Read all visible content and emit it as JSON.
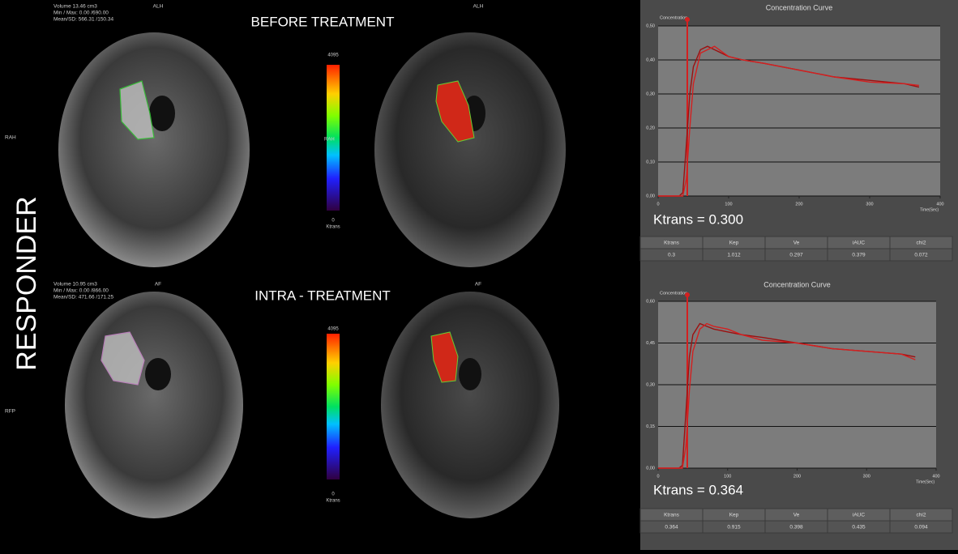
{
  "side_label": "RESPONDER",
  "panels": [
    {
      "heading": "BEFORE TREATMENT",
      "overlay": [
        "Volume 13.46 cm3",
        "Min / Max: 0.00 /690.00",
        "Mean/SD: 566.31 /150.34"
      ],
      "orientation_top": "ALH",
      "orientation_top_right": "ALH",
      "orientation_side": "RAH",
      "colorbar": {
        "max": "4095",
        "mid": "RAH",
        "min": "0",
        "unit": "Ktrans"
      }
    },
    {
      "heading": "INTRA - TREATMENT",
      "overlay": [
        "Volume 10.95 cm3",
        "Min / Max: 0.00 /866.00",
        "Mean/SD: 471.66 /171.25"
      ],
      "orientation_top": "AF",
      "orientation_top_right": "AF",
      "orientation_side": "RFP",
      "colorbar": {
        "max": "4095",
        "mid": "",
        "min": "0",
        "unit": "Ktrans"
      }
    }
  ],
  "chart_data": [
    {
      "type": "line",
      "title": "Concentration Curve",
      "y_label": "Concentration",
      "x_label": "Time(Sec)",
      "x": [
        0,
        30,
        35,
        40,
        45,
        50,
        60,
        70,
        80,
        100,
        120,
        150,
        200,
        250,
        300,
        350,
        370
      ],
      "series": [
        {
          "color": "#9c1010",
          "values": [
            0,
            0,
            0.01,
            0.15,
            0.3,
            0.38,
            0.43,
            0.44,
            0.43,
            0.41,
            0.4,
            0.39,
            0.37,
            0.35,
            0.34,
            0.33,
            0.32
          ]
        },
        {
          "color": "#d42020",
          "values": [
            0,
            0,
            0,
            0.05,
            0.2,
            0.33,
            0.42,
            0.43,
            0.44,
            0.41,
            0.4,
            0.39,
            0.37,
            0.35,
            0.335,
            0.33,
            0.325
          ]
        }
      ],
      "xlim": [
        0,
        400
      ],
      "xticks": [
        0,
        100,
        200,
        300,
        400
      ],
      "ylim": [
        0,
        0.5
      ],
      "yticks": [
        {
          "value": 0,
          "label": "0,00"
        },
        {
          "value": 0.1,
          "label": "0,10"
        },
        {
          "value": 0.2,
          "label": "0,20"
        },
        {
          "value": 0.3,
          "label": "0,30"
        },
        {
          "value": 0.4,
          "label": "0,40"
        },
        {
          "value": 0.5,
          "label": "0,50"
        }
      ],
      "grid": true,
      "annotation": "Ktrans = 0.300",
      "table": {
        "headers": [
          "Ktrans",
          "Kep",
          "Ve",
          "iAUC",
          "chi2"
        ],
        "rows": [
          [
            "0.3",
            "1.012",
            "0.297",
            "0.379",
            "0.072"
          ]
        ]
      }
    },
    {
      "type": "line",
      "title": "Concentration Curve",
      "y_label": "Concentration",
      "x_label": "Time(Sec)",
      "x": [
        0,
        30,
        35,
        40,
        45,
        50,
        60,
        70,
        80,
        100,
        120,
        150,
        200,
        250,
        300,
        350,
        370
      ],
      "series": [
        {
          "color": "#9c1010",
          "values": [
            0,
            0,
            0.01,
            0.2,
            0.4,
            0.48,
            0.52,
            0.51,
            0.5,
            0.49,
            0.48,
            0.47,
            0.45,
            0.43,
            0.42,
            0.41,
            0.4
          ]
        },
        {
          "color": "#d42020",
          "values": [
            0,
            0,
            0,
            0.08,
            0.28,
            0.42,
            0.5,
            0.52,
            0.51,
            0.5,
            0.48,
            0.46,
            0.45,
            0.43,
            0.42,
            0.41,
            0.39
          ]
        }
      ],
      "xlim": [
        0,
        400
      ],
      "xticks": [
        0,
        100,
        200,
        300,
        400
      ],
      "ylim": [
        0,
        0.6
      ],
      "yticks": [
        {
          "value": 0,
          "label": "0,00"
        },
        {
          "value": 0.15,
          "label": "0,15"
        },
        {
          "value": 0.3,
          "label": "0,30"
        },
        {
          "value": 0.45,
          "label": "0,45"
        },
        {
          "value": 0.6,
          "label": "0,60"
        }
      ],
      "grid": true,
      "annotation": "Ktrans = 0.364",
      "table": {
        "headers": [
          "Ktrans",
          "Kep",
          "Ve",
          "iAUC",
          "chi2"
        ],
        "rows": [
          [
            "0.364",
            "0.915",
            "0.398",
            "0.435",
            "0.094"
          ]
        ]
      }
    }
  ]
}
